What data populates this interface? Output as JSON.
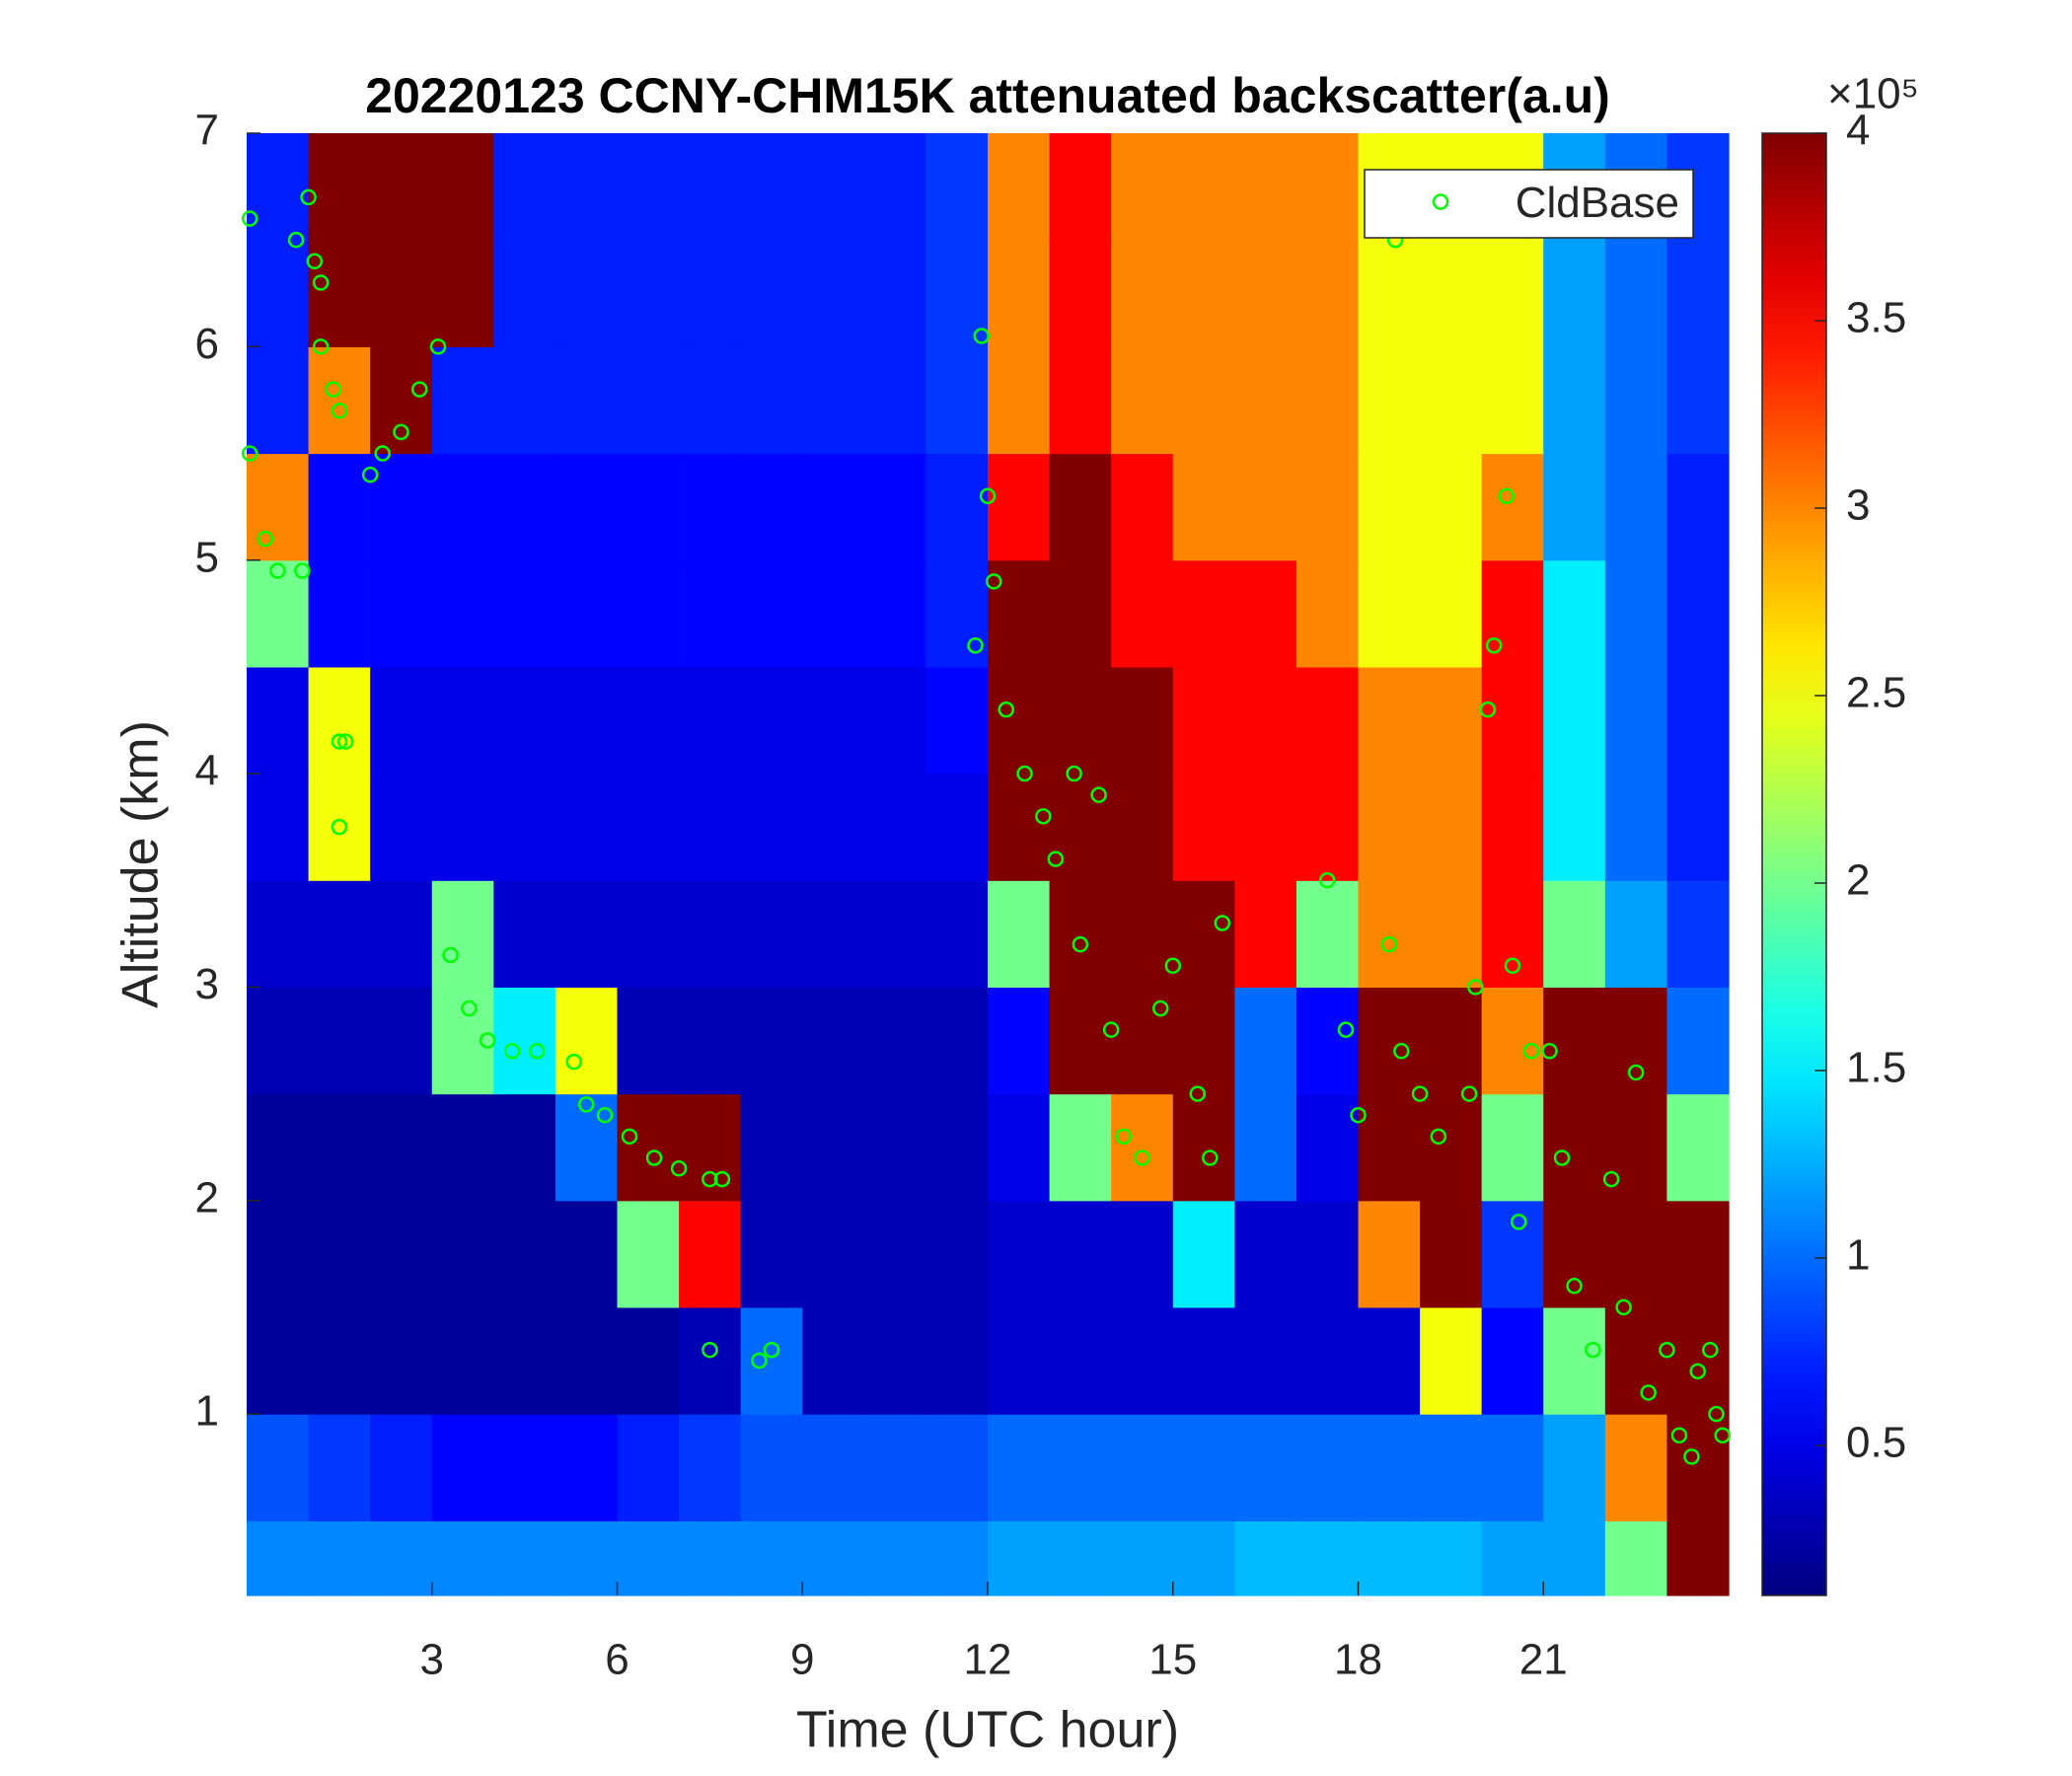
{
  "chart_data": {
    "type": "heatmap",
    "title": "20220123 CCNY-CHM15K attenuated backscatter(a.u)",
    "xlabel": "Time (UTC hour)",
    "ylabel": "Altitude (km)",
    "xlim": [
      0,
      24
    ],
    "ylim": [
      0.15,
      7
    ],
    "xticks": [
      3,
      6,
      9,
      12,
      15,
      18,
      21
    ],
    "yticks": [
      1,
      2,
      3,
      4,
      5,
      6,
      7
    ],
    "colormap": "jet",
    "clim": [
      0.1,
      4
    ],
    "cticks": [
      0.5,
      1,
      1.5,
      2,
      2.5,
      3,
      3.5,
      4
    ],
    "colorbar_exponent": "×10⁵",
    "x_edges": [
      0,
      1,
      2,
      3,
      4,
      5,
      6,
      7,
      8,
      9,
      10,
      11,
      12,
      13,
      14,
      15,
      16,
      17,
      18,
      19,
      20,
      21,
      22,
      23,
      24
    ],
    "y_edges": [
      0.15,
      0.5,
      1,
      1.5,
      2,
      2.5,
      3,
      3.5,
      4,
      4.5,
      5,
      5.5,
      6,
      6.5,
      7
    ],
    "values": [
      [
        1.1,
        1.1,
        1.1,
        1.1,
        1.1,
        1.1,
        1.1,
        1.1,
        1.1,
        1.1,
        1.1,
        1.1,
        1.2,
        1.2,
        1.2,
        1.2,
        1.3,
        1.3,
        1.3,
        1.3,
        1.2,
        1.2,
        2,
        4
      ],
      [
        0.9,
        0.8,
        0.7,
        0.6,
        0.6,
        0.6,
        0.7,
        0.8,
        0.9,
        0.9,
        0.9,
        0.9,
        1,
        1,
        1,
        1,
        1,
        1,
        1,
        1,
        1,
        1.2,
        3,
        4
      ],
      [
        0.2,
        0.2,
        0.2,
        0.2,
        0.2,
        0.2,
        0.2,
        0.3,
        1,
        0.3,
        0.3,
        0.3,
        0.4,
        0.4,
        0.4,
        0.4,
        0.4,
        0.4,
        0.4,
        2.5,
        0.6,
        2,
        4,
        4
      ],
      [
        0.2,
        0.2,
        0.2,
        0.2,
        0.2,
        0.2,
        2,
        3.5,
        0.3,
        0.3,
        0.3,
        0.3,
        0.4,
        0.4,
        0.4,
        1.5,
        0.4,
        0.4,
        3,
        4,
        0.8,
        4,
        4,
        4
      ],
      [
        0.2,
        0.2,
        0.2,
        0.2,
        0.2,
        1,
        4,
        4,
        0.3,
        0.3,
        0.3,
        0.3,
        0.5,
        2,
        3,
        4,
        1,
        0.5,
        4,
        4,
        2,
        4,
        4,
        2
      ],
      [
        0.3,
        0.3,
        0.3,
        2,
        1.5,
        2.5,
        0.3,
        0.3,
        0.3,
        0.3,
        0.3,
        0.3,
        0.6,
        4,
        4,
        4,
        1,
        0.6,
        4,
        4,
        3,
        4,
        4,
        1
      ],
      [
        0.4,
        0.4,
        0.4,
        2,
        0.4,
        0.4,
        0.4,
        0.4,
        0.4,
        0.4,
        0.4,
        0.4,
        2,
        4,
        4,
        4,
        3.5,
        2,
        3,
        3,
        3.5,
        2,
        1.2,
        0.8
      ],
      [
        0.5,
        2.5,
        0.5,
        0.5,
        0.5,
        0.5,
        0.5,
        0.5,
        0.5,
        0.5,
        0.5,
        0.5,
        4,
        4,
        4,
        3.5,
        3.5,
        3.5,
        3,
        3,
        3.5,
        1.5,
        1,
        0.7
      ],
      [
        0.5,
        2.5,
        0.5,
        0.5,
        0.5,
        0.5,
        0.5,
        0.5,
        0.5,
        0.5,
        0.5,
        0.6,
        4,
        4,
        4,
        3.5,
        3.5,
        3.5,
        3,
        3,
        3.5,
        1.5,
        1,
        0.7
      ],
      [
        2,
        0.6,
        0.6,
        0.6,
        0.6,
        0.6,
        0.6,
        0.6,
        0.6,
        0.6,
        0.6,
        0.7,
        4,
        4,
        3.5,
        3.5,
        3.5,
        3,
        2.5,
        2.5,
        3.5,
        1.5,
        1,
        0.7
      ],
      [
        3,
        0.6,
        0.6,
        0.6,
        0.6,
        0.6,
        0.6,
        0.6,
        0.6,
        0.6,
        0.6,
        0.7,
        3.5,
        4,
        3.5,
        3,
        3,
        3,
        2.5,
        2.5,
        3,
        1.2,
        1,
        0.7
      ],
      [
        0.7,
        3,
        4,
        0.7,
        0.7,
        0.7,
        0.7,
        0.7,
        0.7,
        0.7,
        0.7,
        0.8,
        3,
        3.5,
        3,
        3,
        3,
        3,
        2.5,
        2.5,
        2.5,
        1.2,
        1,
        0.8
      ],
      [
        0.7,
        4,
        4,
        4,
        0.7,
        0.7,
        0.7,
        0.7,
        0.7,
        0.7,
        0.7,
        0.8,
        3,
        3.5,
        3,
        3,
        3,
        3,
        2.5,
        2.5,
        2.5,
        1.2,
        1,
        0.8
      ],
      [
        0.7,
        4,
        4,
        4,
        0.7,
        0.7,
        0.7,
        0.7,
        0.7,
        0.7,
        0.7,
        0.8,
        3,
        3.5,
        3,
        3,
        3,
        3,
        2.5,
        2.5,
        2.5,
        1.2,
        1,
        0.8
      ]
    ],
    "legend": "upper right",
    "series": [
      {
        "name": "CldBase",
        "type": "scatter",
        "color": "#00ff00",
        "x": [
          0.05,
          0.05,
          0.3,
          0.5,
          0.9,
          0.8,
          1,
          1.1,
          1.2,
          1.2,
          1.4,
          1.5,
          1.5,
          1.6,
          1.5,
          2,
          2.2,
          2.5,
          2.8,
          3.1,
          3.3,
          3.6,
          3.9,
          4.3,
          4.7,
          5.3,
          5.5,
          5.8,
          6.2,
          6.6,
          7,
          7.5,
          7.7,
          7.5,
          8.3,
          8.5,
          11.8,
          11.9,
          12,
          12.1,
          12.3,
          12.6,
          12.9,
          13.1,
          13.4,
          13.8,
          13.5,
          14,
          14.2,
          14.5,
          14.8,
          15,
          15.4,
          15.6,
          15.8,
          17.5,
          17.8,
          18,
          18.5,
          18.7,
          18.6,
          19,
          19.3,
          19.8,
          19.9,
          20.1,
          20.2,
          20.4,
          20.5,
          20.8,
          20.6,
          21.1,
          21.3,
          21.5,
          21.8,
          22.1,
          22.3,
          22.5,
          22.7,
          23,
          23.2,
          23.5,
          23.8,
          23.9,
          23.7,
          23.4
        ],
        "y": [
          6.6,
          5.5,
          5.1,
          4.95,
          4.95,
          6.5,
          6.7,
          6.4,
          6.3,
          6,
          5.8,
          5.7,
          4.15,
          4.15,
          3.75,
          5.4,
          5.5,
          5.6,
          5.8,
          6,
          3.15,
          2.9,
          2.75,
          2.7,
          2.7,
          2.65,
          2.45,
          2.4,
          2.3,
          2.2,
          2.15,
          2.1,
          2.1,
          1.3,
          1.25,
          1.3,
          4.6,
          6.05,
          5.3,
          4.9,
          4.3,
          4,
          3.8,
          3.6,
          4,
          3.9,
          3.2,
          2.8,
          2.3,
          2.2,
          2.9,
          3.1,
          2.5,
          2.2,
          3.3,
          3.5,
          2.8,
          2.4,
          3.2,
          2.7,
          6.5,
          2.5,
          2.3,
          2.5,
          3,
          4.3,
          4.6,
          5.3,
          3.1,
          2.7,
          1.9,
          2.7,
          2.2,
          1.6,
          1.3,
          2.1,
          1.5,
          2.6,
          1.1,
          1.3,
          0.9,
          1.2,
          1,
          0.9,
          1.3,
          0.8
        ]
      }
    ]
  }
}
